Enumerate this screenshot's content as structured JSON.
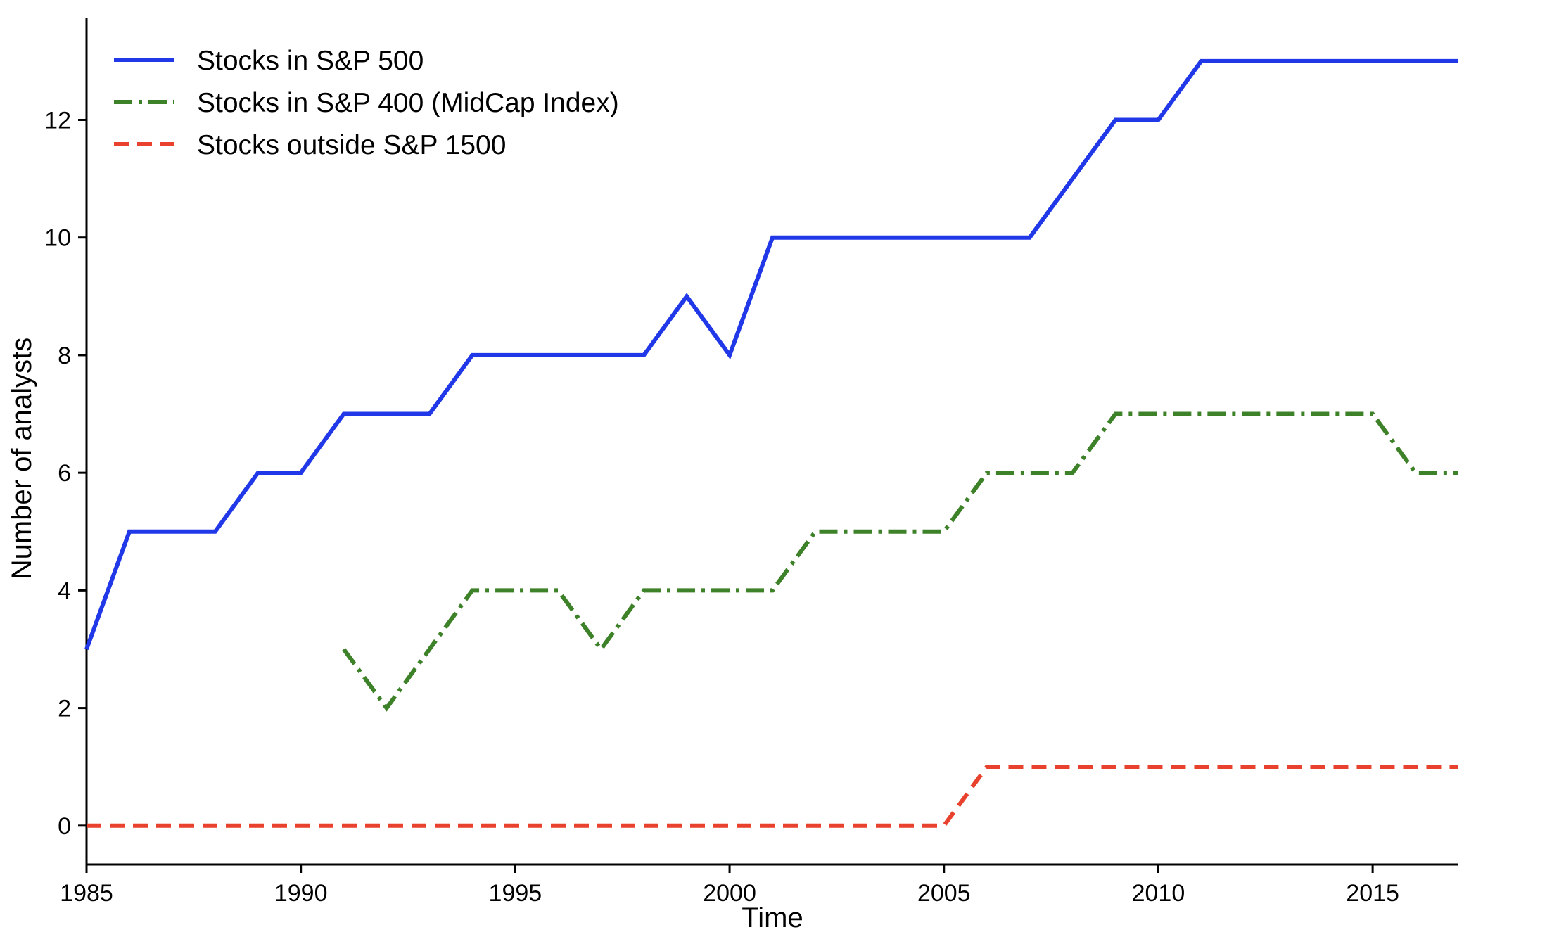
{
  "chart_data": {
    "type": "line",
    "title": "",
    "xlabel": "Time",
    "ylabel": "Number of analysts",
    "grid": false,
    "legend_position": "upper-left",
    "xlim": [
      1985,
      2017
    ],
    "ylim": [
      -0.66,
      13.74
    ],
    "x_ticks": [
      1985,
      1990,
      1995,
      2000,
      2005,
      2010,
      2015
    ],
    "y_ticks": [
      0,
      2,
      4,
      6,
      8,
      10,
      12
    ],
    "axis_color": "#000000",
    "background_color": "#ffffff",
    "series": [
      {
        "name": "Stocks in S&P 500",
        "color": "#2038e8",
        "line_style": "solid",
        "x": [
          1985,
          1986,
          1987,
          1988,
          1989,
          1990,
          1991,
          1992,
          1993,
          1994,
          1995,
          1996,
          1997,
          1998,
          1999,
          2000,
          2001,
          2002,
          2003,
          2004,
          2005,
          2006,
          2007,
          2008,
          2009,
          2010,
          2011,
          2012,
          2013,
          2014,
          2015,
          2016,
          2017
        ],
        "values": [
          3,
          5,
          5,
          5,
          6,
          6,
          7,
          7,
          7,
          8,
          8,
          8,
          8,
          8,
          9,
          8,
          10,
          10,
          10,
          10,
          10,
          10,
          10,
          11,
          12,
          12,
          13,
          13,
          13,
          13,
          13,
          13,
          13
        ]
      },
      {
        "name": "Stocks in S&P 400 (MidCap Index)",
        "color": "#3d8128",
        "line_style": "dash-dot",
        "x": [
          1991,
          1992,
          1993,
          1994,
          1995,
          1996,
          1997,
          1998,
          1999,
          2000,
          2001,
          2002,
          2003,
          2004,
          2005,
          2006,
          2007,
          2008,
          2009,
          2010,
          2011,
          2012,
          2013,
          2014,
          2015,
          2016,
          2017
        ],
        "values": [
          3,
          2,
          3,
          4,
          4,
          4,
          3,
          4,
          4,
          4,
          4,
          5,
          5,
          5,
          5,
          6,
          6,
          6,
          7,
          7,
          7,
          7,
          7,
          7,
          7,
          6,
          6
        ]
      },
      {
        "name": "Stocks outside S&P 1500",
        "color": "#e8412d",
        "line_style": "dashed",
        "x": [
          1985,
          1986,
          1987,
          1988,
          1989,
          1990,
          1991,
          1992,
          1993,
          1994,
          1995,
          1996,
          1997,
          1998,
          1999,
          2000,
          2001,
          2002,
          2003,
          2004,
          2005,
          2006,
          2007,
          2008,
          2009,
          2010,
          2011,
          2012,
          2013,
          2014,
          2015,
          2016,
          2017
        ],
        "values": [
          0,
          0,
          0,
          0,
          0,
          0,
          0,
          0,
          0,
          0,
          0,
          0,
          0,
          0,
          0,
          0,
          0,
          0,
          0,
          0,
          0,
          1,
          1,
          1,
          1,
          1,
          1,
          1,
          1,
          1,
          1,
          1,
          1
        ]
      }
    ]
  }
}
